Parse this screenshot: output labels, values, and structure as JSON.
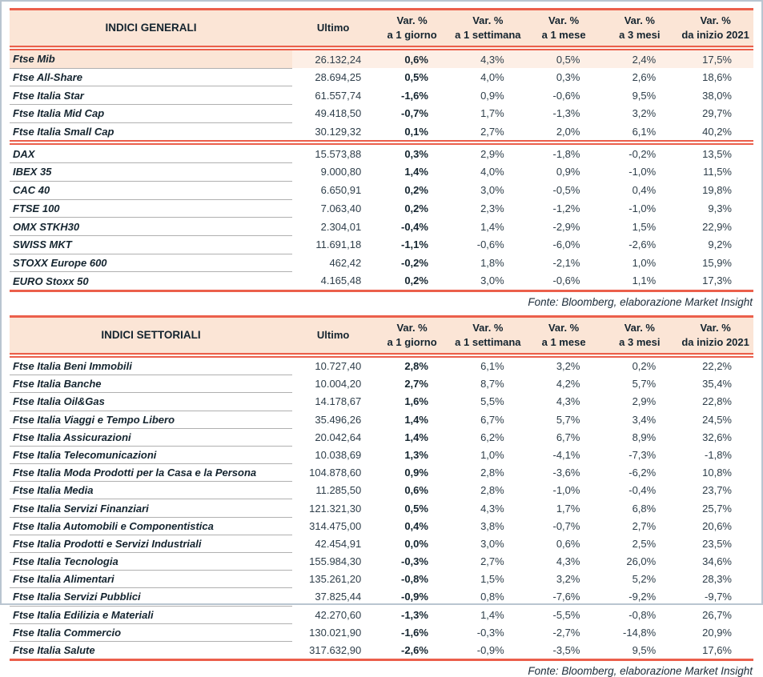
{
  "colors": {
    "accent_red": "#eb5f4b",
    "header_bg": "#fbe5d6",
    "highlight_row_bg": "#fdefe6",
    "highlight_name_bg": "#fbe5d6",
    "frame_border": "#b9c5d0",
    "text_dark": "#14242f",
    "divider_gray": "#b0b0b0"
  },
  "general": {
    "title": "INDICI GENERALI",
    "ultimo_label": "Ultimo",
    "var_label": "Var. %",
    "periods": [
      "a 1 giorno",
      "a 1 settimana",
      "a 1 mese",
      "a 3 mesi",
      "da inizio 2021"
    ],
    "rows": [
      {
        "name": "Ftse Mib",
        "ultimo": "26.132,24",
        "d1": "0,6%",
        "w1": "4,3%",
        "m1": "0,5%",
        "m3": "2,4%",
        "ytd": "17,5%",
        "highlight": true
      },
      {
        "name": "Ftse All-Share",
        "ultimo": "28.694,25",
        "d1": "0,5%",
        "w1": "4,0%",
        "m1": "0,3%",
        "m3": "2,6%",
        "ytd": "18,6%"
      },
      {
        "name": "Ftse Italia Star",
        "ultimo": "61.557,74",
        "d1": "-1,6%",
        "w1": "0,9%",
        "m1": "-0,6%",
        "m3": "9,5%",
        "ytd": "38,0%"
      },
      {
        "name": "Ftse Italia Mid Cap",
        "ultimo": "49.418,50",
        "d1": "-0,7%",
        "w1": "1,7%",
        "m1": "-1,3%",
        "m3": "3,2%",
        "ytd": "29,7%"
      },
      {
        "name": "Ftse Italia Small Cap",
        "ultimo": "30.129,32",
        "d1": "0,1%",
        "w1": "2,7%",
        "m1": "2,0%",
        "m3": "6,1%",
        "ytd": "40,2%"
      },
      {
        "name": "DAX",
        "ultimo": "15.573,88",
        "d1": "0,3%",
        "w1": "2,9%",
        "m1": "-1,8%",
        "m3": "-0,2%",
        "ytd": "13,5%",
        "group_start": true
      },
      {
        "name": "IBEX 35",
        "ultimo": "9.000,80",
        "d1": "1,4%",
        "w1": "4,0%",
        "m1": "0,9%",
        "m3": "-1,0%",
        "ytd": "11,5%"
      },
      {
        "name": "CAC 40",
        "ultimo": "6.650,91",
        "d1": "0,2%",
        "w1": "3,0%",
        "m1": "-0,5%",
        "m3": "0,4%",
        "ytd": "19,8%"
      },
      {
        "name": "FTSE 100",
        "ultimo": "7.063,40",
        "d1": "0,2%",
        "w1": "2,3%",
        "m1": "-1,2%",
        "m3": "-1,0%",
        "ytd": "9,3%"
      },
      {
        "name": "OMX STKH30",
        "ultimo": "2.304,01",
        "d1": "-0,4%",
        "w1": "1,4%",
        "m1": "-2,9%",
        "m3": "1,5%",
        "ytd": "22,9%"
      },
      {
        "name": "SWISS MKT",
        "ultimo": "11.691,18",
        "d1": "-1,1%",
        "w1": "-0,6%",
        "m1": "-6,0%",
        "m3": "-2,6%",
        "ytd": "9,2%"
      },
      {
        "name": "STOXX Europe 600",
        "ultimo": "462,42",
        "d1": "-0,2%",
        "w1": "1,8%",
        "m1": "-2,1%",
        "m3": "1,0%",
        "ytd": "15,9%"
      },
      {
        "name": "EURO Stoxx 50",
        "ultimo": "4.165,48",
        "d1": "0,2%",
        "w1": "3,0%",
        "m1": "-0,6%",
        "m3": "1,1%",
        "ytd": "17,3%"
      }
    ],
    "fonte": "Fonte: Bloomberg, elaborazione Market Insight"
  },
  "sector": {
    "title": "INDICI SETTORIALI",
    "ultimo_label": "Ultimo",
    "var_label": "Var. %",
    "periods": [
      "a 1 giorno",
      "a 1 settimana",
      "a 1 mese",
      "a 3 mesi",
      "da inizio 2021"
    ],
    "rows": [
      {
        "name": "Ftse Italia Beni Immobili",
        "ultimo": "10.727,40",
        "d1": "2,8%",
        "w1": "6,1%",
        "m1": "3,2%",
        "m3": "0,2%",
        "ytd": "22,2%"
      },
      {
        "name": "Ftse Italia Banche",
        "ultimo": "10.004,20",
        "d1": "2,7%",
        "w1": "8,7%",
        "m1": "4,2%",
        "m3": "5,7%",
        "ytd": "35,4%"
      },
      {
        "name": "Ftse Italia Oil&Gas",
        "ultimo": "14.178,67",
        "d1": "1,6%",
        "w1": "5,5%",
        "m1": "4,3%",
        "m3": "2,9%",
        "ytd": "22,8%"
      },
      {
        "name": "Ftse Italia Viaggi e Tempo Libero",
        "ultimo": "35.496,26",
        "d1": "1,4%",
        "w1": "6,7%",
        "m1": "5,7%",
        "m3": "3,4%",
        "ytd": "24,5%"
      },
      {
        "name": "Ftse Italia Assicurazioni",
        "ultimo": "20.042,64",
        "d1": "1,4%",
        "w1": "6,2%",
        "m1": "6,7%",
        "m3": "8,9%",
        "ytd": "32,6%"
      },
      {
        "name": "Ftse Italia Telecomunicazioni",
        "ultimo": "10.038,69",
        "d1": "1,3%",
        "w1": "1,0%",
        "m1": "-4,1%",
        "m3": "-7,3%",
        "ytd": "-1,8%"
      },
      {
        "name": "Ftse Italia Moda Prodotti per la Casa e la Persona",
        "ultimo": "104.878,60",
        "d1": "0,9%",
        "w1": "2,8%",
        "m1": "-3,6%",
        "m3": "-6,2%",
        "ytd": "10,8%"
      },
      {
        "name": "Ftse Italia Media",
        "ultimo": "11.285,50",
        "d1": "0,6%",
        "w1": "2,8%",
        "m1": "-1,0%",
        "m3": "-0,4%",
        "ytd": "23,7%"
      },
      {
        "name": "Ftse Italia Servizi Finanziari",
        "ultimo": "121.321,30",
        "d1": "0,5%",
        "w1": "4,3%",
        "m1": "1,7%",
        "m3": "6,8%",
        "ytd": "25,7%"
      },
      {
        "name": "Ftse Italia Automobili e Componentistica",
        "ultimo": "314.475,00",
        "d1": "0,4%",
        "w1": "3,8%",
        "m1": "-0,7%",
        "m3": "2,7%",
        "ytd": "20,6%"
      },
      {
        "name": "Ftse Italia Prodotti e Servizi Industriali",
        "ultimo": "42.454,91",
        "d1": "0,0%",
        "w1": "3,0%",
        "m1": "0,6%",
        "m3": "2,5%",
        "ytd": "23,5%"
      },
      {
        "name": "Ftse Italia Tecnologia",
        "ultimo": "155.984,30",
        "d1": "-0,3%",
        "w1": "2,7%",
        "m1": "4,3%",
        "m3": "26,0%",
        "ytd": "34,6%"
      },
      {
        "name": "Ftse Italia Alimentari",
        "ultimo": "135.261,20",
        "d1": "-0,8%",
        "w1": "1,5%",
        "m1": "3,2%",
        "m3": "5,2%",
        "ytd": "28,3%"
      },
      {
        "name": "Ftse Italia Servizi Pubblici",
        "ultimo": "37.825,44",
        "d1": "-0,9%",
        "w1": "0,8%",
        "m1": "-7,6%",
        "m3": "-9,2%",
        "ytd": "-9,7%"
      },
      {
        "name": "Ftse Italia Edilizia e Materiali",
        "ultimo": "42.270,60",
        "d1": "-1,3%",
        "w1": "1,4%",
        "m1": "-5,5%",
        "m3": "-0,8%",
        "ytd": "26,7%"
      },
      {
        "name": "Ftse Italia Commercio",
        "ultimo": "130.021,90",
        "d1": "-1,6%",
        "w1": "-0,3%",
        "m1": "-2,7%",
        "m3": "-14,8%",
        "ytd": "20,9%"
      },
      {
        "name": "Ftse Italia Salute",
        "ultimo": "317.632,90",
        "d1": "-2,6%",
        "w1": "-0,9%",
        "m1": "-3,5%",
        "m3": "9,5%",
        "ytd": "17,6%"
      }
    ],
    "fonte": "Fonte: Bloomberg, elaborazione Market Insight"
  }
}
